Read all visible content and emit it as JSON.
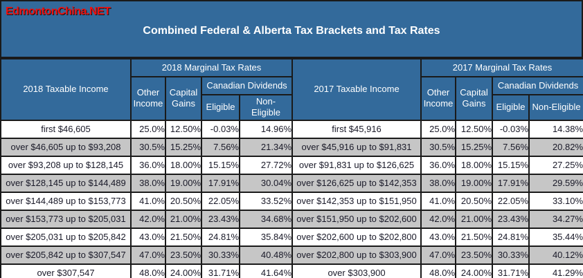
{
  "watermark": "EdmontonChina.NET",
  "title": "Combined Federal & Alberta Tax Brackets and Tax Rates",
  "colors": {
    "header_blue": "#336A9B",
    "row_gray": "#C6C6C6",
    "row_white": "#FFFFFF",
    "border_dark": "#1A1A1A",
    "watermark_red": "#EE1111",
    "header_text": "#FFFFFF",
    "body_text": "#191928"
  },
  "tables": [
    {
      "headers": {
        "income": "2018 Taxable Income",
        "rates": "2018 Marginal Tax Rates",
        "other": "Other Income",
        "capital": "Capital Gains",
        "dividends": "Canadian Dividends",
        "eligible": "Eligible",
        "noneligible": "Non-Eligible"
      },
      "rows": [
        {
          "cells": [
            "first $46,605",
            "25.0%",
            "12.50%",
            "-0.03%",
            "14.96%"
          ]
        },
        {
          "cells": [
            "over $46,605 up to $93,208",
            "30.5%",
            "15.25%",
            "7.56%",
            "21.34%"
          ]
        },
        {
          "cells": [
            "over $93,208 up to $128,145",
            "36.0%",
            "18.00%",
            "15.15%",
            "27.72%"
          ]
        },
        {
          "cells": [
            "over $128,145 up to $144,489",
            "38.0%",
            "19.00%",
            "17.91%",
            "30.04%"
          ]
        },
        {
          "cells": [
            "over $144,489 up to $153,773",
            "41.0%",
            "20.50%",
            "22.05%",
            "33.52%"
          ]
        },
        {
          "cells": [
            "over $153,773 up to $205,031",
            "42.0%",
            "21.00%",
            "23.43%",
            "34.68%"
          ]
        },
        {
          "cells": [
            "over $205,031 up to $205,842",
            "43.0%",
            "21.50%",
            "24.81%",
            "35.84%"
          ]
        },
        {
          "cells": [
            "over $205,842 up to $307,547",
            "47.0%",
            "23.50%",
            "30.33%",
            "40.48%"
          ]
        },
        {
          "cells": [
            "over $307,547",
            "48.0%",
            "24.00%",
            "31.71%",
            "41.64%"
          ]
        }
      ]
    },
    {
      "headers": {
        "income": "2017 Taxable Income",
        "rates": "2017 Marginal Tax Rates",
        "other": "Other Income",
        "capital": "Capital Gains",
        "dividends": "Canadian Dividends",
        "eligible": "Eligible",
        "noneligible": "Non-Eligible"
      },
      "rows": [
        {
          "cells": [
            "first $45,916",
            "25.0%",
            "12.50%",
            "-0.03%",
            "14.38%"
          ]
        },
        {
          "cells": [
            "over $45,916 up to $91,831",
            "30.5%",
            "15.25%",
            "7.56%",
            "20.82%"
          ]
        },
        {
          "cells": [
            "over $91,831 up to $126,625",
            "36.0%",
            "18.00%",
            "15.15%",
            "27.25%"
          ]
        },
        {
          "cells": [
            "over $126,625 up to $142,353",
            "38.0%",
            "19.00%",
            "17.91%",
            "29.59%"
          ]
        },
        {
          "cells": [
            "over $142,353 up to $151,950",
            "41.0%",
            "20.50%",
            "22.05%",
            "33.10%"
          ]
        },
        {
          "cells": [
            "over $151,950 up to $202,600",
            "42.0%",
            "21.00%",
            "23.43%",
            "34.27%"
          ]
        },
        {
          "cells": [
            "over $202,600 up to $202,800",
            "43.0%",
            "21.50%",
            "24.81%",
            "35.44%"
          ]
        },
        {
          "cells": [
            "over $202,800 up to $303,900",
            "47.0%",
            "23.50%",
            "30.33%",
            "40.12%"
          ]
        },
        {
          "cells": [
            "over $303,900",
            "48.0%",
            "24.00%",
            "31.71%",
            "41.29%"
          ]
        }
      ]
    }
  ]
}
